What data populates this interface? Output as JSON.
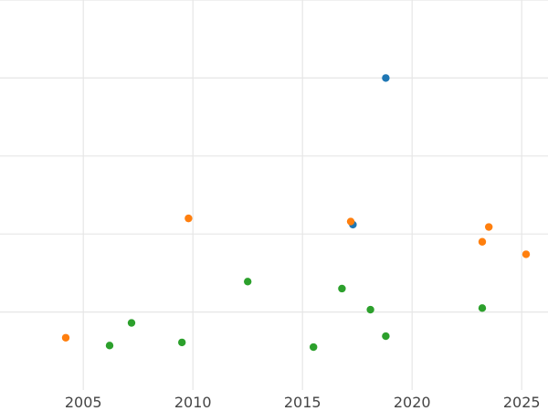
{
  "chart_data": {
    "type": "scatter",
    "title": "",
    "xlabel": "",
    "ylabel": "",
    "xlim": [
      2001.2,
      2026.2
    ],
    "ylim": [
      0,
      5
    ],
    "grid": true,
    "x_ticks": [
      2005,
      2010,
      2015,
      2020,
      2025
    ],
    "x_tick_labels": [
      "2005",
      "2010",
      "2015",
      "2020",
      "2025"
    ],
    "y_gridlines": [
      1,
      2,
      3,
      4,
      5
    ],
    "series": [
      {
        "color": "#1f77b4",
        "points": [
          {
            "x": 2018.8,
            "y": 4.0
          },
          {
            "x": 2017.3,
            "y": 2.12
          }
        ]
      },
      {
        "color": "#ff7f0e",
        "points": [
          {
            "x": 2004.2,
            "y": 0.67
          },
          {
            "x": 2009.8,
            "y": 2.2
          },
          {
            "x": 2017.2,
            "y": 2.16
          },
          {
            "x": 2023.2,
            "y": 1.9
          },
          {
            "x": 2023.5,
            "y": 2.09
          },
          {
            "x": 2025.2,
            "y": 1.74
          }
        ]
      },
      {
        "color": "#2ca02c",
        "points": [
          {
            "x": 2006.2,
            "y": 0.57
          },
          {
            "x": 2007.2,
            "y": 0.86
          },
          {
            "x": 2009.5,
            "y": 0.61
          },
          {
            "x": 2012.5,
            "y": 1.39
          },
          {
            "x": 2015.5,
            "y": 0.55
          },
          {
            "x": 2016.8,
            "y": 1.3
          },
          {
            "x": 2018.1,
            "y": 1.03
          },
          {
            "x": 2018.8,
            "y": 0.69
          },
          {
            "x": 2023.2,
            "y": 1.05
          }
        ]
      }
    ]
  }
}
